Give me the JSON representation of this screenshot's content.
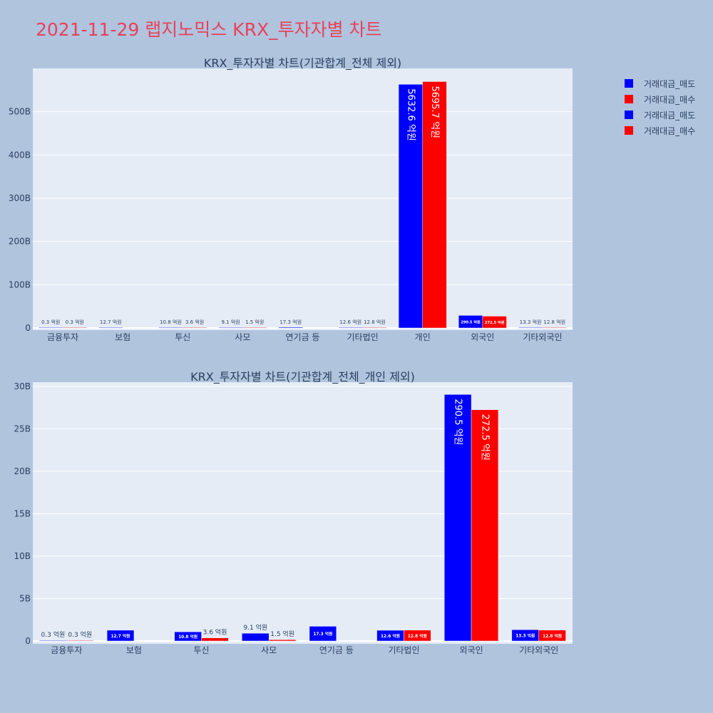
{
  "page_title": "2021-11-29 랩지노믹스 KRX_투자자별 차트",
  "colors": {
    "sell": "#0000ff",
    "buy": "#ff0000",
    "plot_bg": "#e5ecf6",
    "page_bg": "#b0c4de",
    "title": "#e8415a"
  },
  "legend": [
    {
      "label": "거래대금_매도",
      "color": "#0000ff"
    },
    {
      "label": "거래대금_매수",
      "color": "#ff0000"
    },
    {
      "label": "거래대금_매도",
      "color": "#0000ff"
    },
    {
      "label": "거래대금_매수",
      "color": "#ff0000"
    }
  ],
  "chart_data": [
    {
      "type": "bar",
      "title": "KRX_투자자별 차트(기관합계_전체 제외)",
      "categories": [
        "금융투자",
        "보험",
        "투신",
        "사모",
        "연기금 등",
        "기타법인",
        "개인",
        "외국인",
        "기타외국인"
      ],
      "series": [
        {
          "name": "거래대금_매도",
          "color": "#0000ff",
          "values": [
            0.03,
            1.27,
            1.08,
            0.91,
            1.73,
            1.26,
            563.26,
            29.05,
            1.33
          ],
          "labels": [
            "0.3 억원",
            "12.7 억원",
            "10.8 억원",
            "9.1 억원",
            "17.3 억원",
            "12.6 억원",
            "5632.6 억원",
            "290.5 억원",
            "13.3 억원"
          ]
        },
        {
          "name": "거래대금_매수",
          "color": "#ff0000",
          "values": [
            0.03,
            0,
            0.36,
            0.15,
            0,
            1.28,
            569.57,
            27.25,
            1.28
          ],
          "labels": [
            "0.3 억원",
            "",
            "3.6 억원",
            "1.5 억원",
            "",
            "12.8 억원",
            "5695.7 억원",
            "272.5 억원",
            "12.8 억원"
          ]
        }
      ],
      "ylim": [
        0,
        600
      ],
      "yticks": [
        0,
        100,
        200,
        300,
        400,
        500
      ],
      "ytick_labels": [
        "0",
        "100B",
        "200B",
        "300B",
        "400B",
        "500B"
      ],
      "xlabel": "",
      "ylabel": "",
      "grid": true
    },
    {
      "type": "bar",
      "title": "KRX_투자자별 차트(기관합계_전체_개인 제외)",
      "categories": [
        "금융투자",
        "보험",
        "투신",
        "사모",
        "연기금 등",
        "기타법인",
        "외국인",
        "기타외국인"
      ],
      "series": [
        {
          "name": "거래대금_매도",
          "color": "#0000ff",
          "values": [
            0.03,
            1.27,
            1.08,
            0.91,
            1.73,
            1.26,
            29.05,
            1.33
          ],
          "labels": [
            "0.3 억원",
            "12.7 억원",
            "10.8 억원",
            "9.1 억원",
            "17.3 억원",
            "12.6 억원",
            "290.5 억원",
            "13.3 억원"
          ]
        },
        {
          "name": "거래대금_매수",
          "color": "#ff0000",
          "values": [
            0.03,
            0,
            0.36,
            0.15,
            0,
            1.28,
            27.25,
            1.28
          ],
          "labels": [
            "0.3 억원",
            "",
            "3.6 억원",
            "1.5 억원",
            "",
            "12.8 억원",
            "272.5 억원",
            "12.8 억원"
          ]
        }
      ],
      "ylim": [
        0,
        30.5
      ],
      "yticks": [
        0,
        5,
        10,
        15,
        20,
        25,
        30
      ],
      "ytick_labels": [
        "0",
        "5B",
        "10B",
        "15B",
        "20B",
        "25B",
        "30B"
      ],
      "xlabel": "",
      "ylabel": "",
      "grid": true
    }
  ]
}
